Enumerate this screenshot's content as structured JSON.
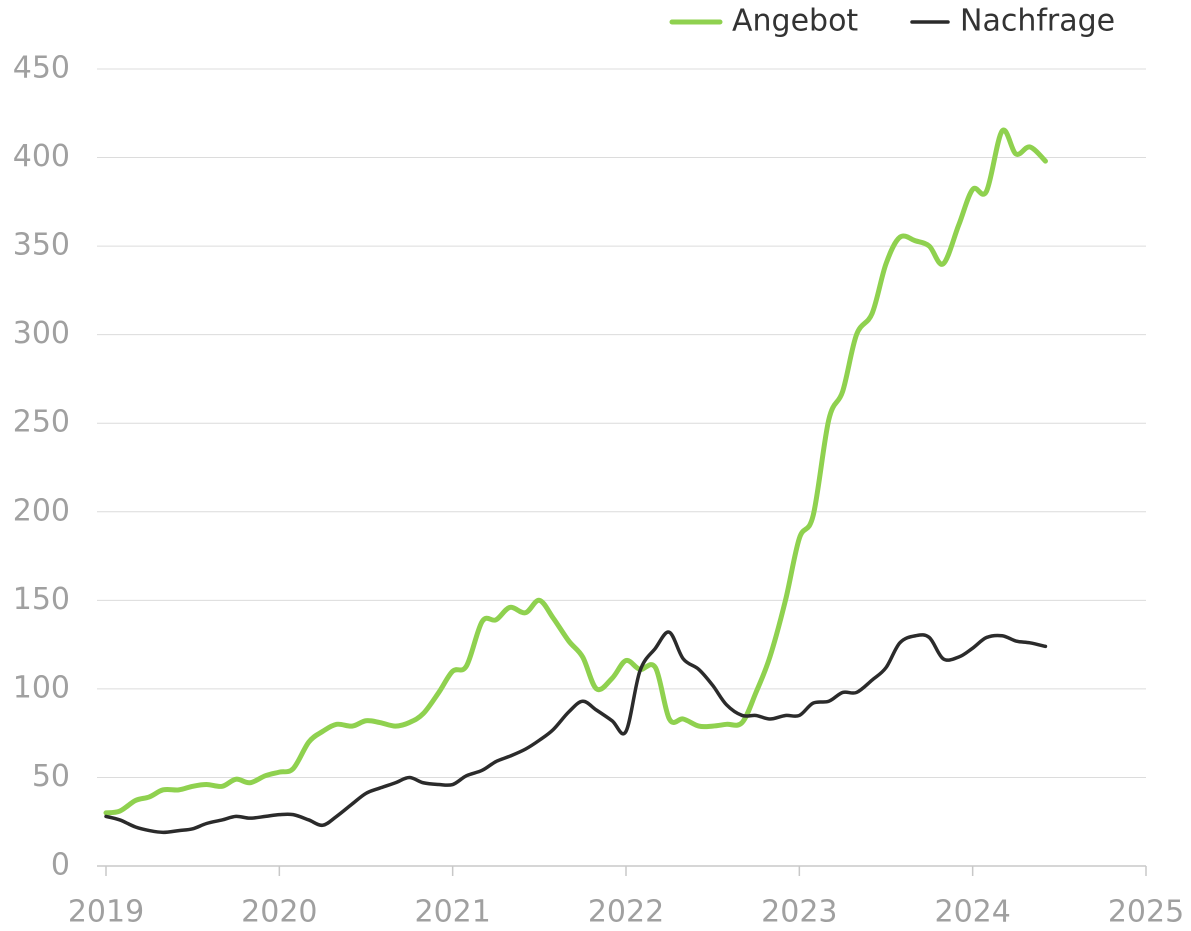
{
  "chart_data": {
    "type": "line",
    "x": [
      2019,
      2019.08,
      2019.17,
      2019.25,
      2019.33,
      2019.42,
      2019.5,
      2019.58,
      2019.67,
      2019.75,
      2019.83,
      2019.92,
      2020,
      2020.08,
      2020.17,
      2020.25,
      2020.33,
      2020.42,
      2020.5,
      2020.58,
      2020.67,
      2020.75,
      2020.83,
      2020.92,
      2021,
      2021.08,
      2021.17,
      2021.25,
      2021.33,
      2021.42,
      2021.5,
      2021.58,
      2021.67,
      2021.75,
      2021.83,
      2021.92,
      2022,
      2022.08,
      2022.17,
      2022.25,
      2022.33,
      2022.42,
      2022.5,
      2022.58,
      2022.67,
      2022.75,
      2022.83,
      2022.92,
      2023,
      2023.08,
      2023.17,
      2023.25,
      2023.33,
      2023.42,
      2023.5,
      2023.58,
      2023.67,
      2023.75,
      2023.83,
      2023.92,
      2024,
      2024.08,
      2024.17,
      2024.25,
      2024.33,
      2024.42
    ],
    "series": [
      {
        "name": "Angebot",
        "color": "#8fd14f",
        "values": [
          30,
          31,
          37,
          39,
          43,
          43,
          45,
          46,
          45,
          49,
          47,
          51,
          53,
          55,
          70,
          76,
          80,
          79,
          82,
          81,
          79,
          81,
          86,
          98,
          110,
          113,
          138,
          139,
          146,
          143,
          150,
          140,
          127,
          118,
          100,
          106,
          116,
          111,
          112,
          83,
          83,
          79,
          79,
          80,
          81,
          98,
          118,
          150,
          185,
          198,
          252,
          268,
          300,
          312,
          340,
          355,
          353,
          350,
          340,
          362,
          382,
          381,
          415,
          402,
          406,
          398
        ]
      },
      {
        "name": "Nachfrage",
        "color": "#2b2b2b",
        "values": [
          28,
          26,
          22,
          20,
          19,
          20,
          21,
          24,
          26,
          28,
          27,
          28,
          29,
          29,
          26,
          23,
          28,
          35,
          41,
          44,
          47,
          50,
          47,
          46,
          46,
          51,
          54,
          59,
          62,
          66,
          71,
          77,
          87,
          93,
          88,
          82,
          76,
          110,
          123,
          132,
          117,
          111,
          102,
          91,
          85,
          85,
          83,
          85,
          85,
          92,
          93,
          98,
          98,
          105,
          112,
          126,
          130,
          129,
          117,
          118,
          123,
          129,
          130,
          127,
          126,
          124
        ]
      }
    ],
    "xlim": [
      2019,
      2025
    ],
    "xticks": [
      2019,
      2020,
      2021,
      2022,
      2023,
      2024,
      2025
    ],
    "ylim": [
      0,
      450
    ],
    "yticks": [
      0,
      50,
      100,
      150,
      200,
      250,
      300,
      350,
      400,
      450
    ],
    "grid": true,
    "legend": "top-right"
  }
}
